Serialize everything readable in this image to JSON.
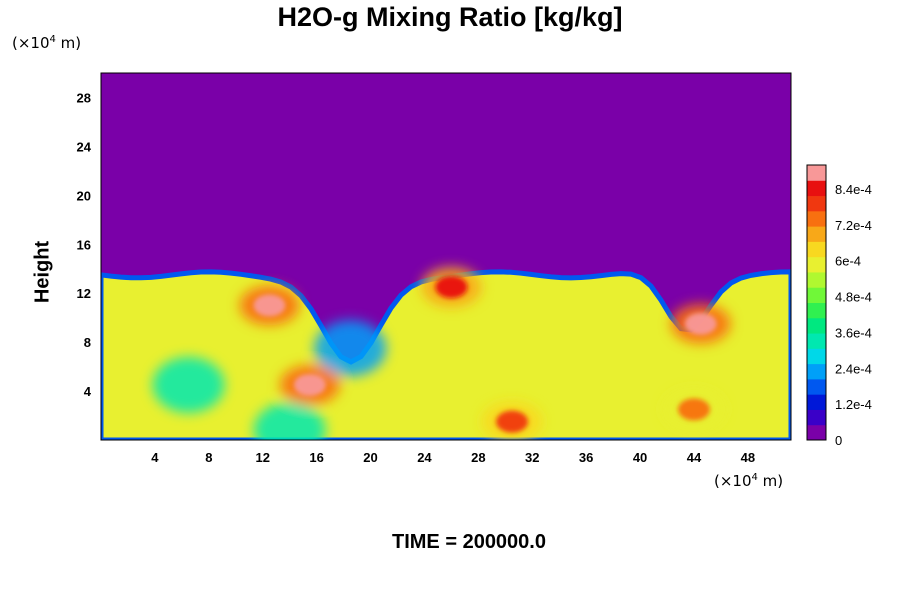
{
  "chart_data": {
    "type": "heatmap",
    "title": "H2O-g Mixing Ratio [kg/kg]",
    "ylabel": "Height",
    "xlabel": "",
    "unit_base": "(×10",
    "unit_exp": "4",
    "unit_tail": " m)",
    "x_ticks": [
      "4",
      "8",
      "12",
      "16",
      "20",
      "24",
      "28",
      "32",
      "36",
      "40",
      "44",
      "48"
    ],
    "x_tick_values": [
      4,
      8,
      12,
      16,
      20,
      24,
      28,
      32,
      36,
      40,
      44,
      48
    ],
    "y_ticks": [
      "4",
      "8",
      "12",
      "16",
      "20",
      "24",
      "28"
    ],
    "y_tick_values": [
      4,
      8,
      12,
      16,
      20,
      24,
      28
    ],
    "xlim": [
      0,
      51.2
    ],
    "ylim": [
      0,
      30
    ],
    "colorbar": {
      "labels": [
        "0",
        "1.2e-4",
        "2.4e-4",
        "3.6e-4",
        "4.8e-4",
        "6e-4",
        "7.2e-4",
        "8.4e-4"
      ],
      "label_values": [
        0,
        0.00012,
        0.00024,
        0.00036,
        0.00048,
        0.0006,
        0.00072,
        0.00084
      ],
      "range": [
        0,
        0.00092
      ],
      "colors": [
        "#7a00a8",
        "#3a00c8",
        "#0018d8",
        "#0058f0",
        "#00a0f8",
        "#00d8e8",
        "#00e8b0",
        "#00e880",
        "#30f050",
        "#70f838",
        "#b0f830",
        "#e8f030",
        "#f8d820",
        "#f8a818",
        "#f87010",
        "#f03810",
        "#e81010",
        "#f89898"
      ]
    },
    "fields": {
      "top_level_height": 13.5,
      "dry_value": 0,
      "moist_background": 0.00058,
      "high_value_regions": [
        {
          "x": 15.5,
          "y": 4.5,
          "value": 0.0009
        },
        {
          "x": 12.5,
          "y": 11.0,
          "value": 0.0009
        },
        {
          "x": 44.5,
          "y": 9.5,
          "value": 0.0009
        },
        {
          "x": 26.0,
          "y": 12.5,
          "value": 0.00085
        },
        {
          "x": 30.5,
          "y": 1.5,
          "value": 0.0008
        },
        {
          "x": 44.0,
          "y": 2.5,
          "value": 0.00075
        }
      ],
      "low_value_regions": [
        {
          "x": 18.5,
          "y": 7.5,
          "value": 0.0002
        },
        {
          "x": 6.5,
          "y": 4.5,
          "value": 0.00035
        },
        {
          "x": 14.0,
          "y": 0.8,
          "value": 0.0003
        }
      ]
    }
  },
  "footer": {
    "time_label": "TIME = 200000.0"
  }
}
